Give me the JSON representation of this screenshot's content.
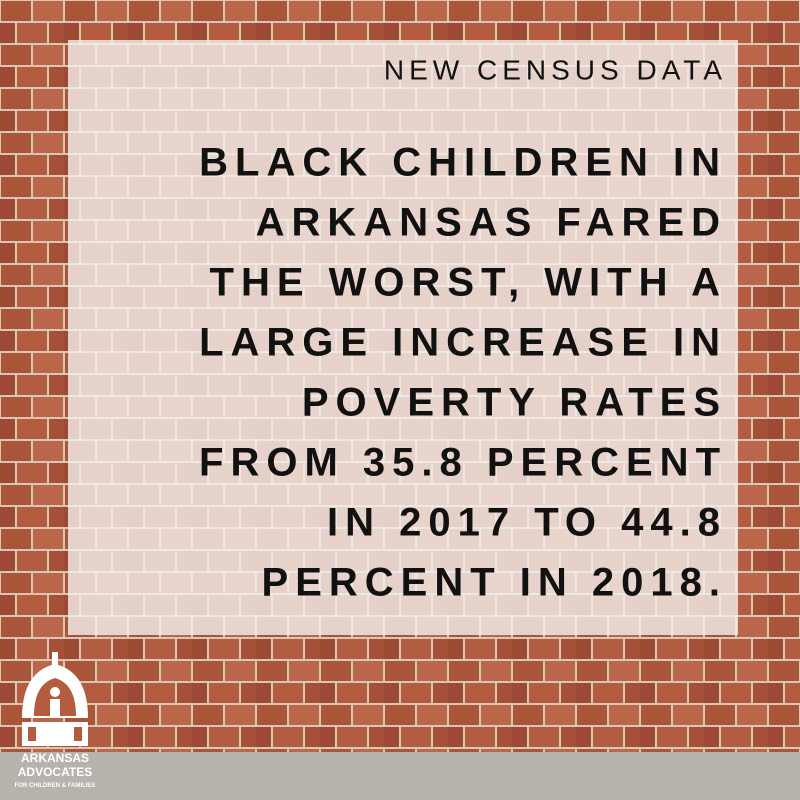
{
  "header": {
    "kicker": "NEW CENSUS DATA"
  },
  "headline": {
    "lines": [
      "BLACK CHILDREN IN",
      "ARKANSAS FARED",
      "THE WORST, WITH A",
      "LARGE INCREASE IN",
      "POVERTY RATES",
      "FROM 35.8 PERCENT",
      "IN 2017 TO 44.8",
      "PERCENT IN 2018."
    ]
  },
  "logo": {
    "name_line1": "ARKANSAS",
    "name_line2": "ADVOCATES",
    "tagline": "FOR CHILDREN & FAMILIES"
  }
}
